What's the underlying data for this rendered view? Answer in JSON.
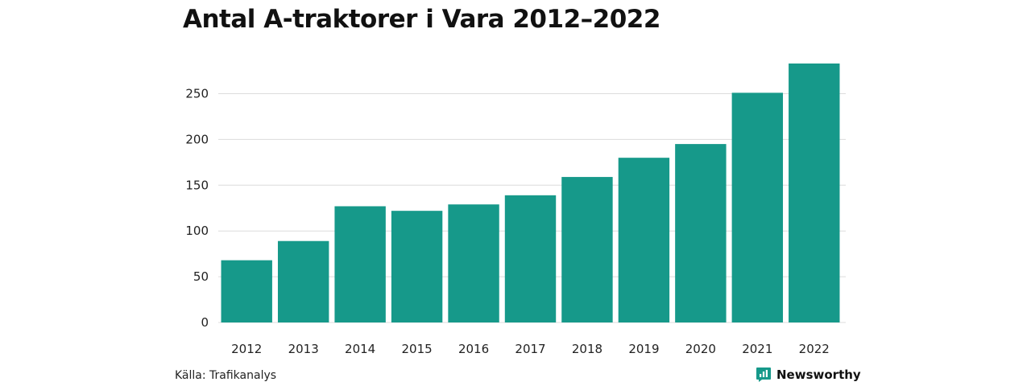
{
  "chart_data": {
    "type": "bar",
    "title": "Antal A-traktorer i Vara 2012–2022",
    "xlabel": "",
    "ylabel": "",
    "categories": [
      "2012",
      "2013",
      "2014",
      "2015",
      "2016",
      "2017",
      "2018",
      "2019",
      "2020",
      "2021",
      "2022"
    ],
    "values": [
      68,
      89,
      127,
      122,
      129,
      139,
      159,
      180,
      195,
      251,
      283
    ],
    "ylim": [
      0,
      290
    ],
    "yticks": [
      0,
      50,
      100,
      150,
      200,
      250
    ],
    "grid": true,
    "legend": "none",
    "bar_color": "#16998a"
  },
  "footer": {
    "source": "Källa: Trafikanalys",
    "brand_name": "Newsworthy",
    "brand_color": "#16998a",
    "brand_icon": "newsworthy-logo-icon"
  }
}
